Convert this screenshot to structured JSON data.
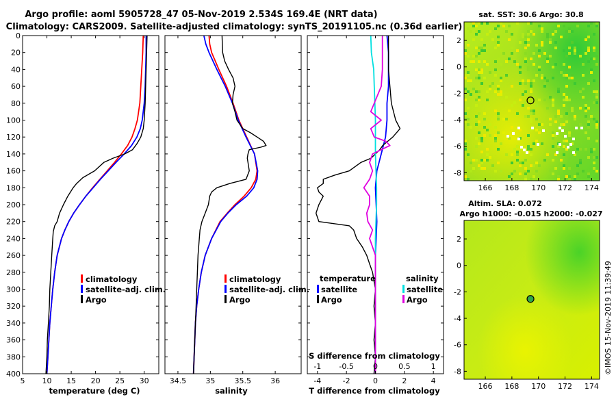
{
  "title": {
    "line1": "Argo profile: aoml 5905728_47 05-Nov-2019 2.534S 169.4E (NRT data)",
    "line2": "Climatology: CARS2009. Satellite-adjusted climatology: synTS_20191105.nc (0.36d earlier)"
  },
  "colors": {
    "red": "#ff0000",
    "blue": "#0000ff",
    "black": "#000000",
    "cyan": "#00e0e0",
    "magenta": "#e000e0",
    "map_green": "#2fcf2f",
    "map_yellow": "#e8f000"
  },
  "chart_data": [
    {
      "id": "temperature-profile",
      "type": "line",
      "xlabel": "temperature (deg C)",
      "ylabel": "",
      "xlim": [
        5,
        33
      ],
      "ylim": [
        400,
        0
      ],
      "xticks": [
        5,
        10,
        15,
        20,
        25,
        30
      ],
      "yticks": [
        0,
        20,
        40,
        60,
        80,
        100,
        120,
        140,
        160,
        180,
        200,
        220,
        240,
        260,
        280,
        300,
        320,
        340,
        360,
        380,
        400
      ],
      "legend": [
        "climatology",
        "satellite-adj. clim.",
        "Argo"
      ],
      "series": [
        {
          "name": "climatology",
          "color": "red",
          "depth": [
            0,
            20,
            40,
            60,
            80,
            100,
            110,
            120,
            130,
            140,
            150,
            160,
            170,
            180,
            190,
            200,
            210,
            220,
            230,
            240,
            260,
            280,
            300,
            320,
            340,
            360,
            380,
            400
          ],
          "values": [
            29.8,
            29.7,
            29.5,
            29.3,
            29.1,
            28.6,
            28.1,
            27.5,
            26.6,
            25.3,
            23.9,
            22.4,
            20.9,
            19.4,
            18.0,
            16.7,
            15.5,
            14.5,
            13.7,
            13.0,
            12.1,
            11.6,
            11.2,
            10.9,
            10.6,
            10.4,
            10.2,
            10.0
          ]
        },
        {
          "name": "satellite-adj. clim.",
          "color": "blue",
          "depth": [
            0,
            20,
            40,
            60,
            80,
            100,
            110,
            120,
            130,
            140,
            150,
            160,
            170,
            180,
            190,
            200,
            210,
            220,
            230,
            240,
            260,
            280,
            300,
            320,
            340,
            360,
            380,
            400
          ],
          "values": [
            30.4,
            30.4,
            30.3,
            30.2,
            30.0,
            29.6,
            29.2,
            28.5,
            27.4,
            25.9,
            24.2,
            22.6,
            21.0,
            19.5,
            18.0,
            16.7,
            15.5,
            14.5,
            13.7,
            13.0,
            12.1,
            11.6,
            11.2,
            10.9,
            10.6,
            10.4,
            10.2,
            10.0
          ]
        },
        {
          "name": "Argo",
          "color": "black",
          "depth": [
            0,
            20,
            40,
            60,
            80,
            100,
            110,
            120,
            128,
            135,
            140,
            145,
            150,
            160,
            168,
            175,
            180,
            190,
            200,
            210,
            220,
            225,
            232,
            240,
            260,
            280,
            300,
            320,
            340,
            360,
            380,
            400
          ],
          "values": [
            30.6,
            30.5,
            30.4,
            30.3,
            30.2,
            30.0,
            29.8,
            29.3,
            28.5,
            27.6,
            26.0,
            23.6,
            21.7,
            19.8,
            17.4,
            16.1,
            15.4,
            14.3,
            13.4,
            12.6,
            12.1,
            11.6,
            11.3,
            11.2,
            11.0,
            10.8,
            10.6,
            10.5,
            10.3,
            10.1,
            10.0,
            9.8
          ]
        }
      ]
    },
    {
      "id": "salinity-profile",
      "type": "line",
      "xlabel": "salinity",
      "xlim": [
        34.3,
        36.4
      ],
      "ylim": [
        400,
        0
      ],
      "xticks": [
        34.5,
        35,
        35.5,
        36
      ],
      "xticklabels": [
        "34.5",
        "35",
        "35.5",
        "36"
      ],
      "legend": [
        "climatology",
        "satellite-adj. clim.",
        "Argo"
      ],
      "series": [
        {
          "name": "climatology",
          "color": "red",
          "depth": [
            0,
            10,
            20,
            40,
            60,
            80,
            100,
            120,
            140,
            160,
            170,
            180,
            190,
            200,
            210,
            220,
            240,
            260,
            280,
            300,
            320,
            340,
            360,
            380,
            400
          ],
          "values": [
            34.98,
            34.99,
            35.02,
            35.13,
            35.25,
            35.35,
            35.44,
            35.56,
            35.68,
            35.72,
            35.7,
            35.63,
            35.52,
            35.38,
            35.26,
            35.15,
            35.02,
            34.92,
            34.86,
            34.82,
            34.79,
            34.77,
            34.76,
            34.75,
            34.74
          ]
        },
        {
          "name": "satellite-adj. clim.",
          "color": "blue",
          "depth": [
            0,
            10,
            20,
            40,
            60,
            80,
            100,
            120,
            140,
            160,
            170,
            180,
            190,
            200,
            210,
            220,
            240,
            260,
            280,
            300,
            320,
            340,
            360,
            380,
            400
          ],
          "values": [
            34.9,
            34.93,
            34.98,
            35.1,
            35.23,
            35.34,
            35.43,
            35.55,
            35.68,
            35.73,
            35.72,
            35.67,
            35.56,
            35.4,
            35.27,
            35.16,
            35.02,
            34.92,
            34.86,
            34.82,
            34.79,
            34.77,
            34.76,
            34.75,
            34.74
          ]
        },
        {
          "name": "Argo",
          "color": "black",
          "depth": [
            0,
            20,
            30,
            40,
            50,
            60,
            70,
            80,
            90,
            100,
            110,
            115,
            120,
            125,
            130,
            132,
            135,
            140,
            145,
            150,
            160,
            170,
            175,
            180,
            185,
            190,
            200,
            210,
            220,
            230,
            240,
            260,
            280,
            300,
            320,
            340,
            360,
            380,
            400
          ],
          "values": [
            35.18,
            35.19,
            35.22,
            35.28,
            35.35,
            35.38,
            35.35,
            35.34,
            35.38,
            35.41,
            35.5,
            35.62,
            35.72,
            35.82,
            35.86,
            35.78,
            35.6,
            35.58,
            35.57,
            35.58,
            35.6,
            35.55,
            35.3,
            35.1,
            35.02,
            34.99,
            34.97,
            34.92,
            34.87,
            34.84,
            34.83,
            34.81,
            34.8,
            34.79,
            34.78,
            34.77,
            34.76,
            34.75,
            34.74
          ]
        }
      ]
    },
    {
      "id": "difference-profile",
      "type": "line",
      "xlabel": "T difference from climatology",
      "xlabel_top": "S difference from climatology",
      "xlim": [
        -4.7,
        4.7
      ],
      "ylim": [
        400,
        0
      ],
      "xticks": [
        -4,
        -2,
        0,
        2,
        4
      ],
      "xticks_top": [
        -1,
        -0.5,
        0,
        0.5,
        1
      ],
      "xticklabels_top": [
        "-1",
        "-0.5",
        "0",
        "0.5",
        "1"
      ],
      "legend_temperature": {
        "heading": "temperature",
        "items": [
          "satellite",
          "Argo"
        ]
      },
      "legend_salinity": {
        "heading": "salinity",
        "items": [
          "satellite",
          "Argo"
        ]
      },
      "series": [
        {
          "name": "T satellite",
          "color": "blue",
          "axis": "temperature",
          "depth": [
            0,
            20,
            40,
            60,
            80,
            100,
            120,
            140,
            160,
            180,
            200,
            220,
            240,
            260,
            280,
            300,
            320,
            340,
            360,
            380,
            400
          ],
          "values": [
            0.8,
            0.9,
            0.9,
            0.9,
            0.8,
            0.8,
            0.7,
            0.4,
            0.1,
            0.0,
            0.05,
            0.1,
            0.05,
            0.0,
            0.0,
            0.0,
            0.0,
            0.0,
            0.0,
            0.0,
            0.0
          ]
        },
        {
          "name": "T Argo",
          "color": "black",
          "axis": "temperature",
          "depth": [
            0,
            20,
            40,
            60,
            80,
            100,
            110,
            120,
            130,
            135,
            140,
            145,
            150,
            160,
            165,
            170,
            175,
            180,
            185,
            190,
            200,
            210,
            220,
            225,
            230,
            240,
            250,
            260,
            270,
            280,
            300,
            320,
            340,
            360,
            380,
            400
          ],
          "values": [
            0.9,
            0.9,
            0.9,
            1.0,
            1.1,
            1.4,
            1.7,
            1.2,
            0.5,
            0.3,
            0.0,
            -0.3,
            -1.0,
            -1.8,
            -2.8,
            -3.6,
            -3.6,
            -4.0,
            -3.9,
            -3.6,
            -3.9,
            -4.1,
            -3.9,
            -1.8,
            -1.5,
            -1.3,
            -0.9,
            -0.6,
            -0.4,
            -0.2,
            0.0,
            -0.1,
            0.0,
            -0.1,
            0.0,
            -0.1
          ]
        },
        {
          "name": "S satellite",
          "color": "cyan",
          "axis": "salinity",
          "depth": [
            0,
            20,
            40,
            60,
            80,
            100,
            120,
            140,
            160,
            180,
            200,
            220,
            240,
            260,
            280,
            300,
            320,
            340,
            360,
            380,
            400
          ],
          "values": [
            -0.08,
            -0.07,
            -0.03,
            -0.02,
            -0.01,
            0.0,
            0.0,
            0.0,
            0.01,
            0.02,
            0.02,
            0.01,
            0.0,
            0.0,
            0.0,
            0.0,
            0.0,
            0.0,
            0.0,
            0.0,
            0.0
          ]
        },
        {
          "name": "S Argo",
          "color": "magenta",
          "axis": "salinity",
          "depth": [
            0,
            20,
            40,
            60,
            80,
            90,
            100,
            110,
            120,
            125,
            130,
            135,
            140,
            150,
            160,
            170,
            180,
            190,
            200,
            210,
            220,
            230,
            240,
            250,
            260,
            280,
            300,
            320,
            340,
            360,
            380,
            400
          ],
          "values": [
            0.12,
            0.12,
            0.12,
            0.1,
            -0.02,
            -0.08,
            0.1,
            -0.08,
            -0.02,
            0.18,
            0.25,
            0.1,
            -0.05,
            -0.1,
            -0.05,
            -0.1,
            -0.2,
            -0.1,
            -0.1,
            -0.15,
            -0.13,
            -0.05,
            -0.1,
            -0.05,
            0.0,
            0.0,
            0.0,
            0.0,
            0.0,
            0.0,
            0.0,
            0.0
          ]
        }
      ]
    }
  ],
  "maps": [
    {
      "id": "sst-map",
      "title": "sat. SST: 30.6 Argo: 30.8",
      "xticks": [
        166,
        168,
        170,
        172,
        174
      ],
      "yticks": [
        2,
        0,
        -2,
        -4,
        -6,
        -8
      ],
      "xlim": [
        164.4,
        174.6
      ],
      "ylim": [
        -8.6,
        3.4
      ],
      "marker": {
        "lon": 169.4,
        "lat": -2.534
      }
    },
    {
      "id": "sla-map",
      "title_line1": "Altim. SLA: 0.072",
      "title_line2": "Argo h1000: -0.015 h2000: -0.027",
      "xticks": [
        166,
        168,
        170,
        172,
        174
      ],
      "yticks": [
        2,
        0,
        -2,
        -4,
        -6,
        -8
      ],
      "xlim": [
        164.4,
        174.6
      ],
      "ylim": [
        -8.6,
        3.4
      ],
      "marker": {
        "lon": 169.4,
        "lat": -2.534
      }
    }
  ],
  "credit": "©IMOS 15-Nov-2019 11:39:49"
}
